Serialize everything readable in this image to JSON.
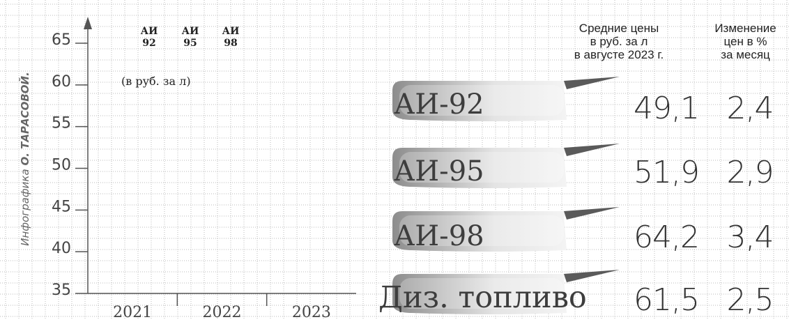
{
  "credit": {
    "prefix": "Инфографика",
    "author": "О. ТАРАСОВОЙ."
  },
  "colors": {
    "grid": "#bbbbbb",
    "axis": "#555555",
    "banner_dark": "#8c8c8c",
    "banner_light": "#e4e4e4"
  },
  "chart_data": {
    "type": "bar",
    "categories": [
      "2021",
      "2022",
      "2023"
    ],
    "ylim": [
      35,
      65
    ],
    "y_ticks": [
      "35",
      "40",
      "45",
      "50",
      "55",
      "60",
      "65"
    ],
    "ylabel": "(в руб. за л)",
    "legend": [
      {
        "line1": "АИ",
        "line2": "92"
      },
      {
        "line1": "АИ",
        "line2": "95"
      },
      {
        "line1": "АИ",
        "line2": "98"
      }
    ],
    "series": []
  },
  "table": {
    "header_price": [
      "Средние цены",
      "в руб. за л",
      "в августе 2023 г."
    ],
    "header_change": [
      "Изменение",
      "цен в %",
      "за месяц"
    ],
    "rows": [
      {
        "fuel": "АИ-92",
        "price": "49,1",
        "change": "2,4"
      },
      {
        "fuel": "АИ-95",
        "price": "51,9",
        "change": "2,9"
      },
      {
        "fuel": "АИ-98",
        "price": "64,2",
        "change": "3,4"
      },
      {
        "fuel": "Диз. топливо",
        "price": "61,5",
        "change": "2,5"
      }
    ]
  }
}
